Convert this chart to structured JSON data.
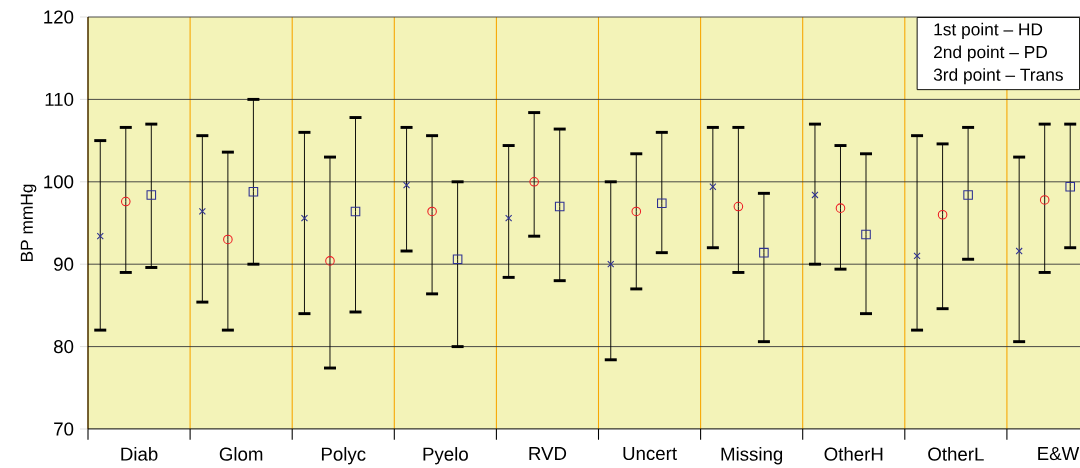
{
  "chart_data": {
    "type": "scatter",
    "ylabel": "BP mmHg",
    "categories": [
      "Diab",
      "Glom",
      "Polyc",
      "Pyelo",
      "RVD",
      "Uncert",
      "Missing",
      "OtherH",
      "OtherL",
      "E&W"
    ],
    "ylim": [
      70,
      120
    ],
    "yticks": [
      70,
      80,
      90,
      100,
      110,
      120
    ],
    "grid": "y",
    "annotations": [
      "1st point – HD",
      "2nd point – PD",
      "3rd point – Trans"
    ],
    "series": [
      {
        "color": "#2e3192",
        "marker": "cross",
        "values": [
          93.4,
          96.4,
          95.6,
          99.6,
          95.6,
          90.0,
          99.4,
          98.4,
          91.0,
          91.6
        ],
        "errors": [
          [
            82.0,
            105.0
          ],
          [
            85.4,
            105.6
          ],
          [
            84.0,
            106.0
          ],
          [
            91.6,
            106.6
          ],
          [
            88.4,
            104.4
          ],
          [
            78.4,
            100.0
          ],
          [
            92.0,
            106.6
          ],
          [
            90.0,
            107.0
          ],
          [
            82.0,
            105.6
          ],
          [
            80.6,
            103.0
          ]
        ]
      },
      {
        "color": "#ed1c24",
        "marker": "circle",
        "values": [
          97.6,
          93.0,
          90.4,
          96.4,
          100.0,
          96.4,
          97.0,
          96.8,
          96.0,
          97.8
        ],
        "errors": [
          [
            89.0,
            106.6
          ],
          [
            82.0,
            103.6
          ],
          [
            77.4,
            103.0
          ],
          [
            86.4,
            105.6
          ],
          [
            93.4,
            108.4
          ],
          [
            87.0,
            103.4
          ],
          [
            89.0,
            106.6
          ],
          [
            89.4,
            104.4
          ],
          [
            84.6,
            104.6
          ],
          [
            89.0,
            107.0
          ]
        ]
      },
      {
        "color": "#2e3192",
        "marker": "square",
        "values": [
          98.4,
          98.8,
          96.4,
          90.6,
          97.0,
          97.4,
          91.4,
          93.6,
          98.4,
          99.4
        ],
        "errors": [
          [
            89.6,
            107.0
          ],
          [
            90.0,
            110.0
          ],
          [
            84.2,
            107.8
          ],
          [
            80.0,
            100.0
          ],
          [
            88.0,
            106.4
          ],
          [
            91.4,
            106.0
          ],
          [
            80.6,
            98.6
          ],
          [
            84.0,
            103.4
          ],
          [
            90.6,
            106.6
          ],
          [
            92.0,
            107.0
          ]
        ]
      }
    ]
  }
}
